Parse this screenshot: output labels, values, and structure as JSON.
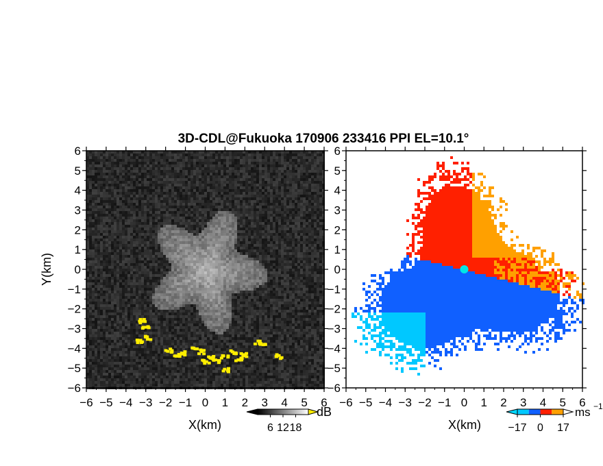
{
  "title": "3D-CDL@Fukuoka 170906 233416 PPI EL=10.1°",
  "chart_data": [
    {
      "type": "heatmap",
      "name": "backscatter",
      "xlabel": "X(km)",
      "ylabel": "Y(km)",
      "xlim": [
        -6,
        6
      ],
      "ylim": [
        -6,
        6
      ],
      "xticks": [
        "−6",
        "−5",
        "−4",
        "−3",
        "−2",
        "−1",
        "0",
        "1",
        "2",
        "3",
        "4",
        "5",
        "6"
      ],
      "yticks": [
        "6",
        "5",
        "4",
        "3",
        "2",
        "1",
        "0",
        "−1",
        "−2",
        "−3",
        "−4",
        "−5",
        "−6"
      ],
      "colorbar": {
        "unit": "dB",
        "ticks": [
          "6",
          "12",
          "18"
        ],
        "range": [
          0,
          24
        ],
        "colors": [
          "#000000",
          "#ffffff"
        ]
      },
      "features": {
        "bright_echo_center": [
          0,
          0
        ],
        "bright_echo_radius_km": 2.7,
        "highlight_color": "#ffee00",
        "highlight_region": "arc near Y=-4 km from X=-3.5 to X=3.8 km"
      }
    },
    {
      "type": "heatmap",
      "name": "doppler_velocity",
      "xlabel": "X(km)",
      "xlim": [
        -6,
        6
      ],
      "ylim": [
        -6,
        6
      ],
      "xticks": [
        "−6",
        "−5",
        "−4",
        "−3",
        "−2",
        "−1",
        "0",
        "1",
        "2",
        "3",
        "4",
        "5",
        "6"
      ],
      "yticks": [
        "6",
        "5",
        "4",
        "3",
        "2",
        "1",
        "0",
        "−1",
        "−2",
        "−3",
        "−4",
        "−5",
        "−6"
      ],
      "colorbar": {
        "unit": "ms",
        "unit_exponent": "−1",
        "ticks": [
          "−17",
          "0",
          "17"
        ],
        "range": [
          -17,
          17
        ],
        "colors": [
          "#00c8ff",
          "#1060ff",
          "#ff2000",
          "#ffa000"
        ]
      },
      "features": {
        "radar_site": [
          0,
          0
        ],
        "site_color": "#00e6e6",
        "approaching_region": "south half (blue)",
        "receding_region": "north-east half (red/orange)"
      }
    }
  ]
}
